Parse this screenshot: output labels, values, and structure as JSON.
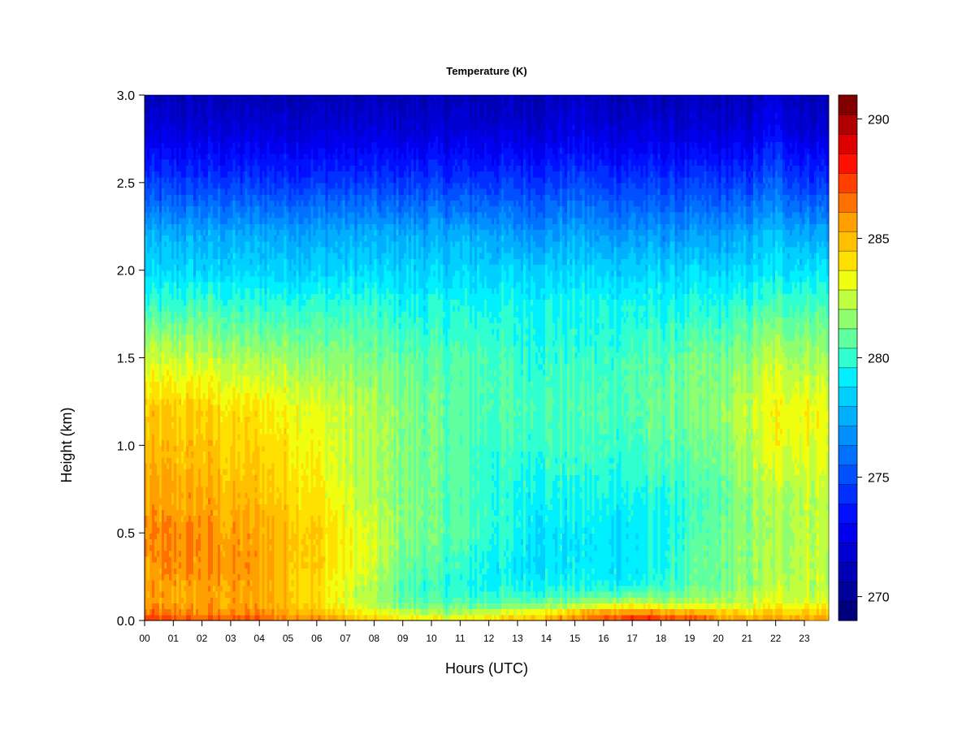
{
  "chart_data": {
    "type": "heatmap",
    "title": "Temperature (K)",
    "xlabel": "Hours (UTC)",
    "ylabel": "Height (km)",
    "x_ticks": [
      "00",
      "01",
      "02",
      "03",
      "04",
      "05",
      "06",
      "07",
      "08",
      "09",
      "10",
      "11",
      "12",
      "13",
      "14",
      "15",
      "16",
      "17",
      "18",
      "19",
      "20",
      "21",
      "22",
      "23"
    ],
    "xlim": [
      0,
      23.85
    ],
    "ylim": [
      0,
      3.0
    ],
    "y_ticks": [
      "0.0",
      "0.5",
      "1.0",
      "1.5",
      "2.0",
      "2.5",
      "3.0"
    ],
    "colorbar": {
      "range": [
        269,
        291
      ],
      "step": 1,
      "ticks": [
        "270",
        "275",
        "280",
        "285",
        "290"
      ],
      "colors": [
        "#00007f",
        "#00009a",
        "#0000b6",
        "#0000d2",
        "#0000ee",
        "#0010ff",
        "#0030ff",
        "#0050ff",
        "#0070ff",
        "#0090ff",
        "#00b0ff",
        "#00d0ff",
        "#00f0ff",
        "#30ffcf",
        "#60ff9f",
        "#90ff6f",
        "#c0ff3f",
        "#efff0f",
        "#ffe000",
        "#ffc000",
        "#ffa000",
        "#ff7000",
        "#ff4000",
        "#ff1000",
        "#df0000",
        "#b00000",
        "#800000"
      ]
    },
    "x_hours": [
      0,
      1,
      2,
      3,
      4,
      5,
      6,
      7,
      8,
      9,
      10,
      11,
      12,
      13,
      14,
      15,
      16,
      17,
      18,
      19,
      20,
      21,
      22,
      23
    ],
    "y_levels_km": [
      0.0,
      0.05,
      0.1,
      0.2,
      0.3,
      0.5,
      0.7,
      0.9,
      1.2,
      1.5,
      1.8,
      2.0,
      2.2,
      2.5,
      2.8,
      3.0
    ],
    "z_values_K": [
      [
        287.5,
        287.0,
        287.0,
        287.0,
        287.0,
        286.5,
        286.5,
        285.5,
        284.5,
        284.0,
        284.0,
        283.5,
        284.5,
        285.0,
        285.5,
        286.5,
        287.5,
        288.5,
        288.0,
        287.5,
        286.5,
        285.5,
        286.0,
        286.0
      ],
      [
        286.5,
        286.0,
        286.0,
        286.0,
        286.0,
        285.5,
        285.0,
        284.0,
        283.0,
        282.5,
        282.0,
        282.0,
        282.5,
        283.0,
        283.5,
        284.5,
        285.5,
        286.0,
        285.5,
        285.0,
        284.5,
        284.0,
        284.5,
        284.5
      ],
      [
        285.5,
        285.5,
        285.5,
        285.5,
        285.5,
        285.0,
        284.0,
        283.0,
        282.0,
        281.0,
        280.5,
        280.5,
        280.5,
        281.0,
        281.0,
        281.5,
        282.0,
        282.5,
        282.0,
        282.0,
        282.0,
        282.5,
        283.0,
        283.0
      ],
      [
        285.5,
        285.5,
        285.5,
        285.5,
        285.5,
        285.0,
        284.0,
        283.0,
        282.0,
        280.5,
        280.0,
        279.5,
        279.5,
        279.5,
        279.5,
        279.5,
        279.5,
        279.5,
        280.0,
        280.5,
        281.0,
        281.5,
        282.5,
        282.5
      ],
      [
        285.5,
        286.0,
        286.0,
        286.0,
        285.5,
        285.0,
        284.5,
        283.5,
        282.5,
        281.0,
        280.5,
        280.0,
        279.5,
        279.0,
        279.0,
        279.0,
        279.0,
        279.0,
        279.5,
        280.5,
        281.0,
        281.5,
        282.0,
        282.5
      ],
      [
        286.0,
        286.0,
        286.0,
        285.5,
        285.5,
        285.0,
        284.5,
        283.5,
        282.5,
        281.5,
        281.0,
        280.5,
        280.0,
        279.5,
        279.0,
        279.0,
        279.0,
        279.0,
        279.5,
        280.0,
        281.0,
        281.5,
        282.0,
        282.5
      ],
      [
        285.5,
        285.5,
        285.5,
        285.0,
        285.0,
        284.5,
        284.0,
        283.0,
        282.0,
        281.5,
        281.0,
        280.5,
        280.0,
        279.5,
        279.5,
        279.5,
        279.5,
        279.5,
        279.5,
        280.0,
        280.5,
        281.5,
        282.0,
        282.5
      ],
      [
        285.0,
        285.0,
        285.0,
        284.5,
        284.5,
        284.0,
        283.5,
        282.5,
        282.0,
        281.5,
        281.0,
        280.5,
        280.0,
        280.0,
        280.0,
        280.0,
        280.0,
        280.0,
        280.5,
        280.5,
        281.0,
        282.0,
        283.0,
        283.0
      ],
      [
        284.5,
        284.5,
        284.5,
        284.0,
        284.0,
        283.5,
        283.0,
        282.5,
        282.0,
        281.5,
        281.0,
        280.5,
        280.5,
        280.5,
        280.5,
        280.5,
        280.5,
        280.5,
        281.0,
        281.0,
        281.5,
        282.5,
        283.5,
        283.5
      ],
      [
        282.5,
        282.5,
        282.5,
        282.0,
        282.0,
        282.0,
        281.5,
        281.5,
        281.0,
        281.0,
        280.5,
        280.5,
        280.5,
        280.0,
        280.0,
        280.0,
        280.0,
        280.5,
        280.5,
        281.0,
        281.0,
        281.5,
        282.5,
        282.0
      ],
      [
        280.0,
        280.0,
        280.5,
        280.0,
        280.0,
        280.0,
        280.0,
        280.0,
        280.0,
        279.5,
        279.5,
        279.5,
        279.5,
        279.5,
        279.5,
        279.5,
        279.5,
        279.5,
        279.5,
        279.5,
        279.5,
        280.0,
        280.5,
        280.5
      ],
      [
        278.5,
        278.5,
        278.5,
        278.5,
        278.5,
        278.5,
        278.5,
        278.5,
        278.5,
        278.5,
        278.5,
        278.5,
        278.5,
        278.5,
        278.5,
        278.5,
        278.5,
        278.5,
        278.5,
        278.5,
        278.5,
        278.5,
        279.0,
        279.0
      ],
      [
        277.5,
        277.5,
        277.5,
        277.5,
        277.5,
        277.5,
        277.5,
        277.5,
        277.5,
        277.5,
        277.5,
        277.5,
        277.5,
        277.0,
        277.0,
        277.5,
        277.0,
        277.0,
        277.0,
        277.0,
        277.0,
        277.5,
        278.0,
        277.5
      ],
      [
        274.5,
        274.5,
        274.5,
        274.5,
        274.5,
        274.5,
        274.5,
        274.5,
        274.5,
        274.5,
        274.5,
        274.5,
        274.5,
        274.5,
        274.5,
        275.0,
        274.5,
        274.5,
        274.5,
        274.5,
        274.5,
        274.5,
        275.5,
        274.5
      ],
      [
        272.0,
        272.0,
        272.0,
        272.0,
        272.0,
        272.0,
        272.0,
        272.0,
        272.0,
        272.0,
        272.0,
        272.0,
        272.0,
        272.0,
        272.0,
        272.5,
        272.0,
        272.0,
        272.0,
        272.0,
        272.0,
        272.0,
        273.0,
        272.0
      ],
      [
        271.0,
        271.0,
        271.0,
        271.0,
        271.0,
        271.0,
        271.0,
        271.0,
        271.0,
        271.0,
        271.0,
        271.0,
        271.0,
        271.0,
        271.0,
        271.5,
        271.0,
        271.0,
        271.0,
        271.0,
        271.0,
        271.0,
        272.0,
        271.0
      ]
    ]
  }
}
